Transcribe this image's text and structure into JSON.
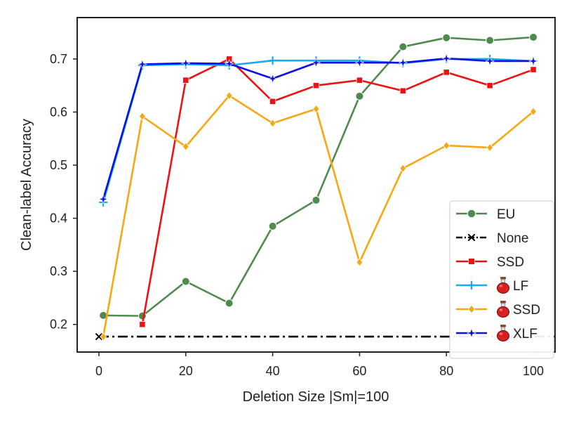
{
  "chart_data": {
    "type": "line",
    "title": "",
    "xlabel": "Deletion Size |Sm|=100",
    "ylabel": "Clean-label Accuracy",
    "xlim": [
      -5,
      105
    ],
    "ylim": [
      0.148,
      0.778
    ],
    "xticks": [
      0,
      20,
      40,
      60,
      80,
      100
    ],
    "yticks": [
      0.2,
      0.3,
      0.4,
      0.5,
      0.6,
      0.7
    ],
    "ytick_labels": [
      "0.2",
      "0.3",
      "0.4",
      "0.5",
      "0.6",
      "0.7"
    ],
    "grid": false,
    "legend_position": "bottom-right",
    "series": [
      {
        "name": "EU",
        "color": "#4f8a4f",
        "marker": "circle",
        "dash": "solid",
        "poison_icon": false,
        "x": [
          1,
          10,
          20,
          30,
          40,
          50,
          60,
          70,
          80,
          90,
          100
        ],
        "y": [
          0.217,
          0.216,
          0.281,
          0.24,
          0.385,
          0.434,
          0.63,
          0.723,
          0.74,
          0.735,
          0.741
        ]
      },
      {
        "name": "None",
        "color": "#000000",
        "marker": "x",
        "dash": "dashdot",
        "poison_icon": false,
        "x": [
          0,
          105
        ],
        "y": [
          0.177,
          0.177
        ]
      },
      {
        "name": "SSD",
        "color": "#ee1111",
        "marker": "square",
        "dash": "solid",
        "poison_icon": false,
        "x": [
          10,
          20,
          30,
          40,
          50,
          60,
          70,
          80,
          90,
          100
        ],
        "y": [
          0.2,
          0.66,
          0.7,
          0.62,
          0.65,
          0.66,
          0.64,
          0.675,
          0.65,
          0.68
        ]
      },
      {
        "name": "LF",
        "color": "#1ba8f0",
        "marker": "plus",
        "dash": "solid",
        "poison_icon": true,
        "x": [
          1,
          10,
          20,
          30,
          40,
          50,
          60,
          70,
          80,
          90,
          100
        ],
        "y": [
          0.43,
          0.688,
          0.69,
          0.688,
          0.697,
          0.697,
          0.697,
          0.692,
          0.7,
          0.7,
          0.696
        ]
      },
      {
        "name": "SSD",
        "color": "#f5a814",
        "marker": "diamond",
        "dash": "solid",
        "poison_icon": true,
        "x": [
          1,
          10,
          20,
          30,
          40,
          50,
          60,
          70,
          80,
          90,
          100
        ],
        "y": [
          0.177,
          0.592,
          0.535,
          0.631,
          0.579,
          0.606,
          0.317,
          0.494,
          0.537,
          0.533,
          0.601
        ]
      },
      {
        "name": "XLF",
        "color": "#0a10e6",
        "marker": "star",
        "dash": "solid",
        "poison_icon": true,
        "x": [
          1,
          10,
          20,
          30,
          40,
          50,
          60,
          70,
          80,
          90,
          100
        ],
        "y": [
          0.436,
          0.69,
          0.692,
          0.691,
          0.663,
          0.693,
          0.693,
          0.693,
          0.701,
          0.696,
          0.696
        ]
      }
    ]
  }
}
